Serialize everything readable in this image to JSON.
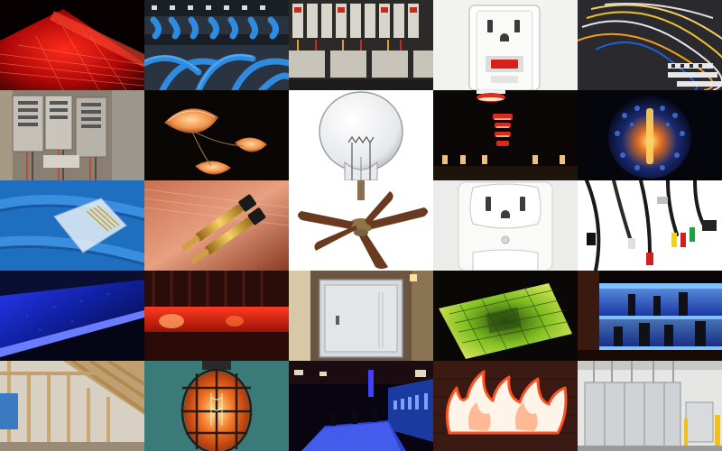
{
  "mosaic": {
    "tiles": [
      {
        "subject": "red-led-roof-lights"
      },
      {
        "subject": "blue-network-patch-panel"
      },
      {
        "subject": "circuit-breaker-rows"
      },
      {
        "subject": "gfci-outlet-red-button"
      },
      {
        "subject": "fiber-cable-bundle"
      },
      {
        "subject": "open-electrical-panels"
      },
      {
        "subject": "orange-shell-pendant-lamps"
      },
      {
        "subject": "clear-light-bulb"
      },
      {
        "subject": "red-stacked-pendant-lamps"
      },
      {
        "subject": "glowing-mosaic-globe-lamp"
      },
      {
        "subject": "blue-ethernet-cable-rj45"
      },
      {
        "subject": "gold-banana-plug-speaker-wire"
      },
      {
        "subject": "ceiling-fan-wood-blades"
      },
      {
        "subject": "duplex-wall-outlet"
      },
      {
        "subject": "assorted-av-cables"
      },
      {
        "subject": "blue-cove-lighting"
      },
      {
        "subject": "red-lit-bar-counter"
      },
      {
        "subject": "grey-breaker-box-cabinet"
      },
      {
        "subject": "green-backlit-glass-panel"
      },
      {
        "subject": "blue-lit-bottle-shelf"
      },
      {
        "subject": "wood-stud-framing-room"
      },
      {
        "subject": "caged-edison-bulb"
      },
      {
        "subject": "blue-lit-bar-interior"
      },
      {
        "subject": "flame-shaped-neon-sign"
      },
      {
        "subject": "electrical-room-cabinets"
      }
    ]
  }
}
